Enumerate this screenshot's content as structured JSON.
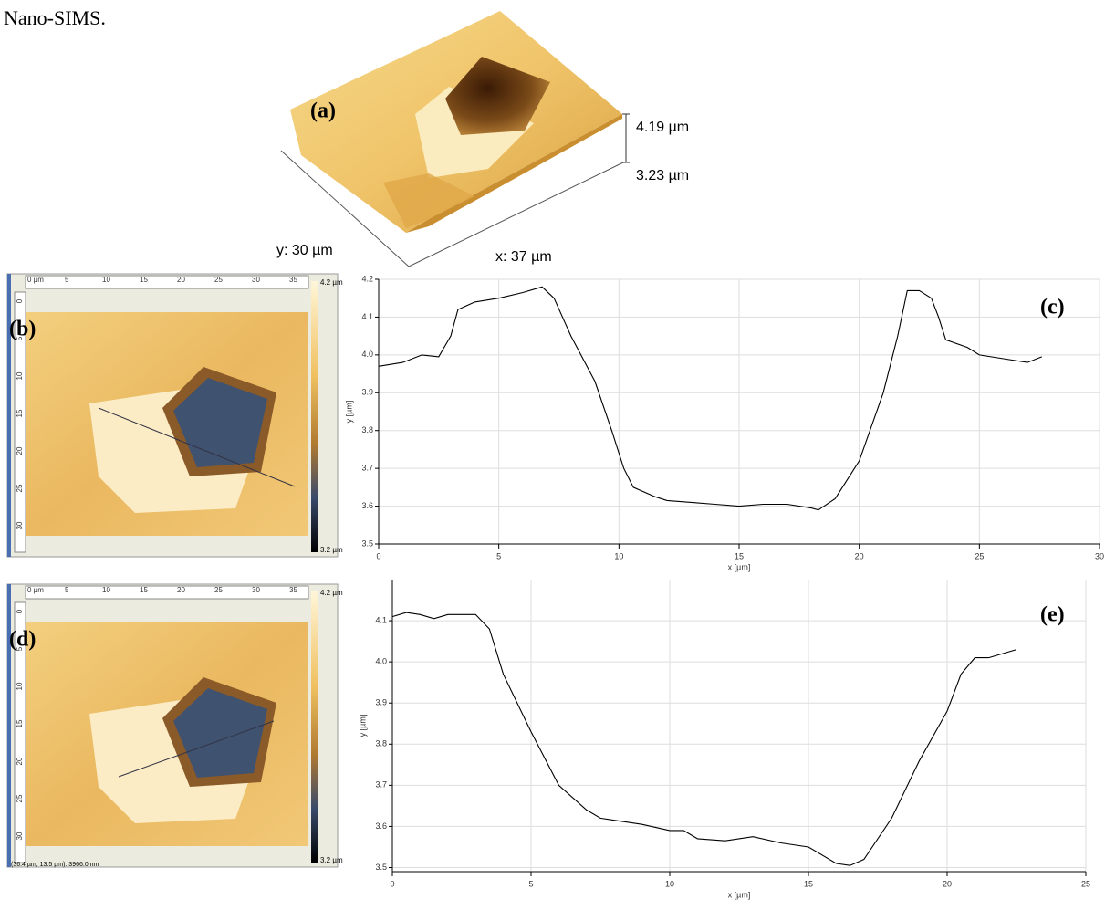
{
  "text": "Nano-SIMS.",
  "afm_3d": {
    "label": "(a)",
    "z_top": "4.19 µm",
    "z_bottom": "3.23 µm",
    "y_size": "y: 30 µm",
    "x_size": "x: 37 µm"
  },
  "afm_b": {
    "label": "(b)",
    "ruler": [
      "0 µm",
      "5",
      "10",
      "15",
      "20",
      "25",
      "30",
      "35"
    ],
    "side_ruler": [
      "0",
      "5",
      "10",
      "15",
      "20",
      "25",
      "30"
    ],
    "scale_top": "4.2 µm",
    "scale_bottom": "3.2 µm"
  },
  "afm_d": {
    "label": "(d)",
    "ruler": [
      "0 µm",
      "5",
      "10",
      "15",
      "20",
      "25",
      "30",
      "35"
    ],
    "side_ruler": [
      "0",
      "5",
      "10",
      "15",
      "20",
      "25",
      "30"
    ],
    "scale_top": "4.2 µm",
    "scale_bottom": "3.2 µm",
    "status": "(36.4 µm, 13.5 µm): 3966.0 nm"
  },
  "chart_data": [
    {
      "type": "line",
      "label": "(c)",
      "x_label": "x [µm]",
      "y_label": "y [µm]",
      "color": "#000000",
      "grid": true,
      "xlim": [
        0,
        30
      ],
      "xticks": [
        0,
        5,
        10,
        15,
        20,
        25,
        30
      ],
      "ylim": [
        3.5,
        4.2
      ],
      "yticks": [
        3.5,
        3.6,
        3.7,
        3.8,
        3.9,
        {
          "value": 4,
          "label": "4.0"
        },
        4.1,
        4.2
      ],
      "x": [
        0,
        1,
        1.8,
        2.5,
        3,
        3.3,
        4,
        5,
        6,
        6.8,
        7.3,
        8,
        9,
        9.7,
        10.2,
        10.6,
        11.5,
        12,
        13,
        14,
        15,
        16,
        17,
        18,
        18.3,
        19,
        20,
        21,
        21.6,
        22,
        22.5,
        23,
        23.3,
        23.6,
        24.5,
        25,
        26,
        27,
        27.6
      ],
      "values": [
        3.97,
        3.98,
        4.0,
        3.995,
        4.05,
        4.12,
        4.14,
        4.15,
        4.165,
        4.18,
        4.15,
        4.05,
        3.93,
        3.8,
        3.7,
        3.65,
        3.625,
        3.615,
        3.61,
        3.605,
        3.6,
        3.605,
        3.605,
        3.595,
        3.59,
        3.62,
        3.72,
        3.9,
        4.05,
        4.17,
        4.17,
        4.15,
        4.1,
        4.04,
        4.02,
        4.0,
        3.99,
        3.98,
        3.995
      ]
    },
    {
      "type": "line",
      "label": "(e)",
      "x_label": "x [µm]",
      "y_label": "y [µm]",
      "color": "#000000",
      "grid": true,
      "xlim": [
        0,
        25
      ],
      "xticks": [
        0,
        5,
        10,
        15,
        20,
        25
      ],
      "ylim": [
        3.49,
        4.2
      ],
      "yticks": [
        3.5,
        3.6,
        3.7,
        3.8,
        3.9,
        {
          "value": 4,
          "label": "4.0"
        },
        4.1
      ],
      "x": [
        0,
        0.5,
        1,
        1.5,
        2,
        3,
        3.5,
        4,
        5,
        6,
        7,
        7.5,
        8,
        9,
        10,
        10.5,
        11,
        12,
        13,
        14,
        15,
        16,
        16.5,
        17,
        18,
        19,
        20,
        20.5,
        21,
        21.5,
        22,
        22.5
      ],
      "values": [
        4.11,
        4.12,
        4.115,
        4.105,
        4.115,
        4.115,
        4.08,
        3.97,
        3.83,
        3.7,
        3.64,
        3.62,
        3.615,
        3.605,
        3.59,
        3.59,
        3.57,
        3.565,
        3.575,
        3.56,
        3.55,
        3.51,
        3.505,
        3.52,
        3.62,
        3.76,
        3.88,
        3.97,
        4.01,
        4.01,
        4.02,
        4.03
      ]
    }
  ]
}
